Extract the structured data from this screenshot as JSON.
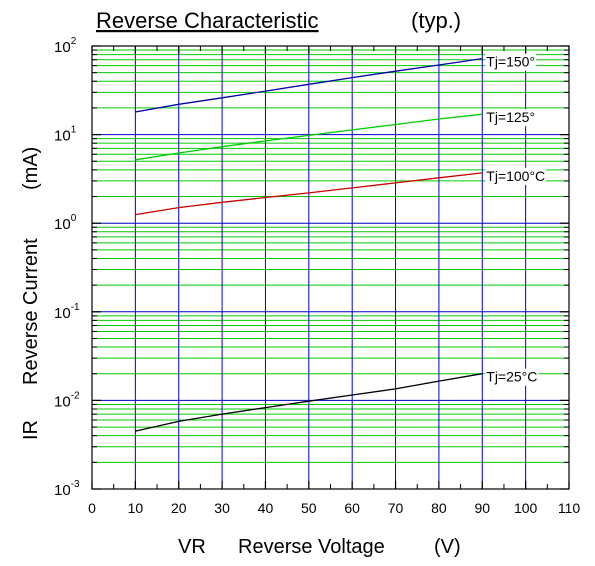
{
  "chart_data": {
    "type": "line",
    "title": "Reverse Characteristic",
    "title_note": "(typ.)",
    "xlabel": {
      "symbol": "VR",
      "name": "Reverse Voltage",
      "unit": "(V)"
    },
    "ylabel": {
      "symbol": "IR",
      "name": "Reverse Current",
      "unit": "(mA)"
    },
    "xlim": [
      0,
      110
    ],
    "ylim": [
      0.001,
      100
    ],
    "yscale": "log",
    "x_ticks": [
      "0",
      "10",
      "20",
      "30",
      "40",
      "50",
      "60",
      "70",
      "80",
      "90",
      "100",
      "110"
    ],
    "y_ticks": [
      {
        "base": "10",
        "exp": "-3"
      },
      {
        "base": "10",
        "exp": "-2"
      },
      {
        "base": "10",
        "exp": "-1"
      },
      {
        "base": "10",
        "exp": "0"
      },
      {
        "base": "10",
        "exp": "1"
      },
      {
        "base": "10",
        "exp": "2"
      }
    ],
    "grid": true,
    "colors": {
      "major_grid": "#0000cc",
      "minor_grid": "#00cc00"
    },
    "series": [
      {
        "label": "Tj=150°",
        "color": "#0000aa",
        "points": [
          [
            10,
            18
          ],
          [
            20,
            22
          ],
          [
            30,
            26
          ],
          [
            40,
            31
          ],
          [
            50,
            37
          ],
          [
            60,
            44
          ],
          [
            70,
            52
          ],
          [
            80,
            61
          ],
          [
            90,
            72
          ]
        ]
      },
      {
        "label": "Tj=125°",
        "color": "#00cc00",
        "points": [
          [
            10,
            5.2
          ],
          [
            20,
            6.2
          ],
          [
            30,
            7.3
          ],
          [
            40,
            8.5
          ],
          [
            50,
            9.8
          ],
          [
            60,
            11.3
          ],
          [
            70,
            13
          ],
          [
            80,
            15
          ],
          [
            90,
            17
          ]
        ]
      },
      {
        "label": "Tj=100°C",
        "color": "#cc0000",
        "points": [
          [
            10,
            1.25
          ],
          [
            20,
            1.5
          ],
          [
            30,
            1.72
          ],
          [
            40,
            1.95
          ],
          [
            50,
            2.2
          ],
          [
            60,
            2.5
          ],
          [
            70,
            2.85
          ],
          [
            80,
            3.25
          ],
          [
            90,
            3.7
          ]
        ]
      },
      {
        "label": "Tj=25°C",
        "color": "#000000",
        "points": [
          [
            10,
            0.0045
          ],
          [
            20,
            0.0058
          ],
          [
            30,
            0.007
          ],
          [
            40,
            0.0083
          ],
          [
            50,
            0.0098
          ],
          [
            60,
            0.0115
          ],
          [
            70,
            0.0135
          ],
          [
            80,
            0.0165
          ],
          [
            90,
            0.02
          ]
        ]
      }
    ]
  }
}
